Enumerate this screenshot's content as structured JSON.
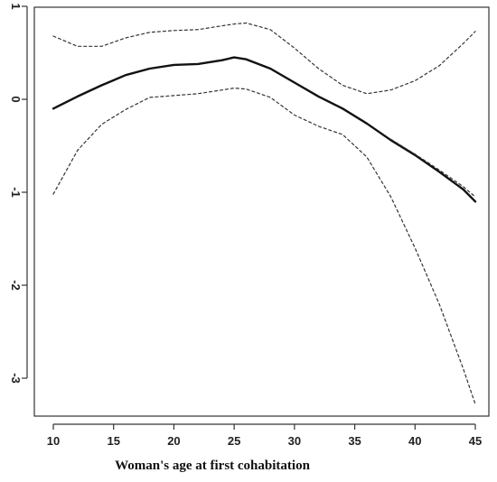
{
  "chart_data": {
    "type": "line",
    "title": "",
    "xlabel": "Woman's age at first cohabitation",
    "ylabel": "",
    "xlim": [
      10,
      45
    ],
    "ylim": [
      -3.5,
      1
    ],
    "xticks": [
      10,
      15,
      20,
      25,
      30,
      35,
      40,
      45
    ],
    "yticks": [
      1,
      0,
      -1,
      -2,
      -3
    ],
    "grid": false,
    "legend": "none",
    "x": [
      10,
      12,
      14,
      16,
      18,
      20,
      22,
      24,
      25,
      26,
      28,
      30,
      32,
      34,
      36,
      38,
      40,
      42,
      44,
      45
    ],
    "series": [
      {
        "style": "solid",
        "values": [
          -0.1,
          0.03,
          0.15,
          0.26,
          0.33,
          0.37,
          0.38,
          0.42,
          0.45,
          0.43,
          0.33,
          0.18,
          0.03,
          -0.1,
          -0.26,
          -0.44,
          -0.6,
          -0.78,
          -0.97,
          -1.1
        ]
      },
      {
        "style": "dashed",
        "values": [
          0.68,
          0.57,
          0.57,
          0.66,
          0.72,
          0.74,
          0.75,
          0.79,
          0.81,
          0.82,
          0.75,
          0.55,
          0.33,
          0.15,
          0.06,
          0.1,
          0.2,
          0.36,
          0.6,
          0.73
        ]
      },
      {
        "style": "dashed",
        "values": [
          -1.02,
          -0.55,
          -0.27,
          -0.11,
          0.02,
          0.04,
          0.06,
          0.1,
          0.12,
          0.11,
          0.02,
          -0.17,
          -0.29,
          -0.38,
          -0.62,
          -1.05,
          -1.6,
          -2.2,
          -2.9,
          -3.28
        ]
      },
      {
        "style": "dashed",
        "values": [
          null,
          null,
          null,
          null,
          null,
          null,
          null,
          null,
          null,
          null,
          null,
          null,
          null,
          null,
          null,
          -0.43,
          -0.59,
          -0.76,
          -0.94,
          -1.05
        ]
      }
    ],
    "colors": {
      "line": "#111111",
      "band": "#333333"
    }
  }
}
